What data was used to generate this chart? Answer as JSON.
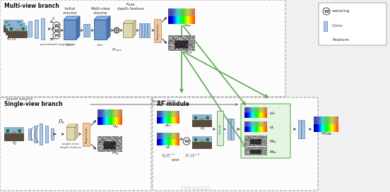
{
  "bg_color": "#f0f0f0",
  "conv_color": "#aec6e8",
  "conv_edge": "#7799bb",
  "volume_front": "#6b96c8",
  "volume_top": "#8ab5dd",
  "volume_right": "#4a72a8",
  "feature_front": "#ddd8b0",
  "feature_top": "#eae6c8",
  "feature_right": "#c8c398",
  "regression_color": "#f0c8a0",
  "regression_edge": "#d4935a",
  "green_arrow": "#5aaa50",
  "dark_arrow": "#333333",
  "box_dash_color": "#999999",
  "watermark": "CSDN @好怒给我抛开线",
  "multi_view_label": "Multi-view branch",
  "single_view_label": "Single-view branch",
  "af_module_label": "AF module",
  "legend_warping": "warping",
  "legend_conv": "Conv",
  "legend_feature": "Feature"
}
